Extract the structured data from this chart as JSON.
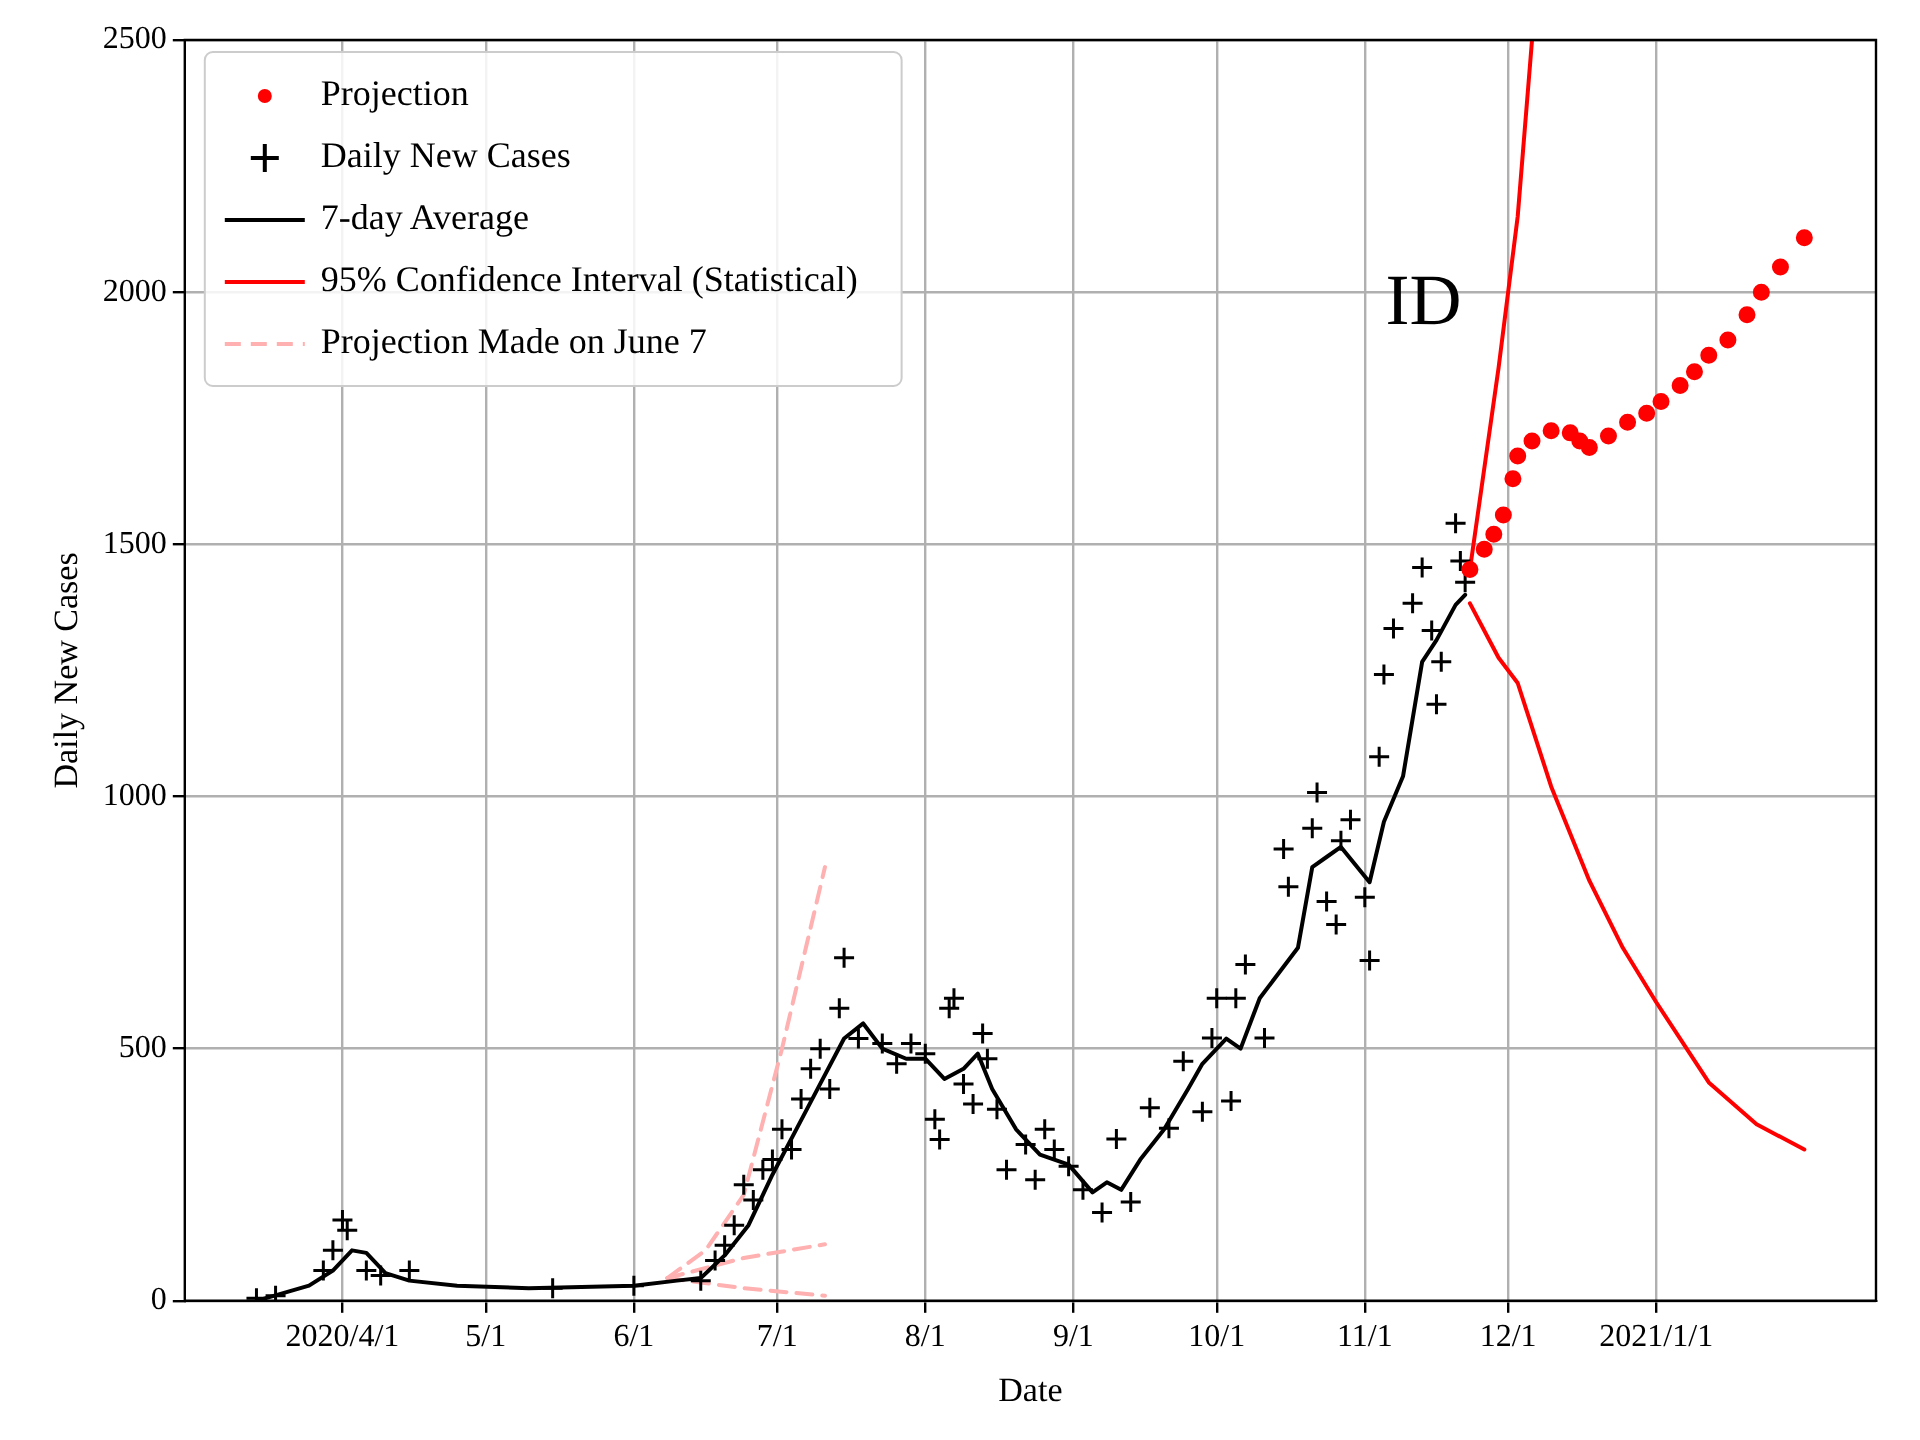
{
  "chart_data": {
    "type": "scatter",
    "xlabel": "Date",
    "ylabel": "Daily New Cases",
    "xlim": [
      "2020-02-28",
      "2021-02-16"
    ],
    "xticks": [
      {
        "value": "2020-04-01",
        "label": "2020/4/1"
      },
      {
        "value": "2020-05-01",
        "label": "5/1"
      },
      {
        "value": "2020-06-01",
        "label": "6/1"
      },
      {
        "value": "2020-07-01",
        "label": "7/1"
      },
      {
        "value": "2020-08-01",
        "label": "8/1"
      },
      {
        "value": "2020-09-01",
        "label": "9/1"
      },
      {
        "value": "2020-10-01",
        "label": "10/1"
      },
      {
        "value": "2020-11-01",
        "label": "11/1"
      },
      {
        "value": "2020-12-01",
        "label": "12/1"
      },
      {
        "value": "2021-01-01",
        "label": "2021/1/1"
      }
    ],
    "ylim": [
      0,
      2500
    ],
    "yticks": [
      0,
      500,
      1000,
      1500,
      2000,
      2500
    ],
    "grid": true,
    "legend": "top left",
    "annotations": [
      "ID"
    ],
    "series": [
      {
        "name": "Projection",
        "type": "scatter",
        "marker": "circle",
        "color": "#ff0000",
        "x": [
          "2020-11-23",
          "2020-11-26",
          "2020-11-28",
          "2020-11-30",
          "2020-12-02",
          "2020-12-03",
          "2020-12-06",
          "2020-12-10",
          "2020-12-14",
          "2020-12-16",
          "2020-12-18",
          "2020-12-22",
          "2020-12-26",
          "2020-12-30",
          "2021-01-02",
          "2021-01-06",
          "2021-01-09",
          "2021-01-12",
          "2021-01-16",
          "2021-01-20",
          "2021-01-23",
          "2021-01-27",
          "2021-02-01"
        ],
        "values": [
          1450,
          1490,
          1520,
          1558,
          1630,
          1675,
          1705,
          1725,
          1721,
          1705,
          1692,
          1715,
          1742,
          1760,
          1783,
          1815,
          1842,
          1875,
          1905,
          1955,
          2000,
          2050,
          2108
        ]
      },
      {
        "name": "Daily New Cases",
        "type": "scatter",
        "marker": "cross",
        "color": "#000000",
        "x": [
          "2020-03-14",
          "2020-03-18",
          "2020-03-28",
          "2020-03-30",
          "2020-04-01",
          "2020-04-02",
          "2020-04-06",
          "2020-04-09",
          "2020-04-15",
          "2020-05-15",
          "2020-06-01",
          "2020-06-15",
          "2020-06-18",
          "2020-06-20",
          "2020-06-22",
          "2020-06-24",
          "2020-06-26",
          "2020-06-28",
          "2020-06-30",
          "2020-07-02",
          "2020-07-04",
          "2020-07-06",
          "2020-07-08",
          "2020-07-10",
          "2020-07-12",
          "2020-07-14",
          "2020-07-15",
          "2020-07-18",
          "2020-07-23",
          "2020-07-26",
          "2020-07-29",
          "2020-08-01",
          "2020-08-03",
          "2020-08-04",
          "2020-08-06",
          "2020-08-07",
          "2020-08-09",
          "2020-08-11",
          "2020-08-13",
          "2020-08-14",
          "2020-08-16",
          "2020-08-18",
          "2020-08-22",
          "2020-08-24",
          "2020-08-26",
          "2020-08-28",
          "2020-08-31",
          "2020-09-03",
          "2020-09-07",
          "2020-09-10",
          "2020-09-13",
          "2020-09-17",
          "2020-09-21",
          "2020-09-24",
          "2020-09-28",
          "2020-09-30",
          "2020-10-01",
          "2020-10-04",
          "2020-10-05",
          "2020-10-07",
          "2020-10-11",
          "2020-10-15",
          "2020-10-16",
          "2020-10-21",
          "2020-10-22",
          "2020-10-24",
          "2020-10-26",
          "2020-10-27",
          "2020-10-29",
          "2020-11-01",
          "2020-11-02",
          "2020-11-04",
          "2020-11-05",
          "2020-11-07",
          "2020-11-11",
          "2020-11-13",
          "2020-11-15",
          "2020-11-16",
          "2020-11-17",
          "2020-11-20",
          "2020-11-21",
          "2020-11-22"
        ],
        "values": [
          5,
          10,
          60,
          100,
          160,
          140,
          60,
          50,
          60,
          25,
          30,
          40,
          80,
          110,
          150,
          230,
          200,
          260,
          280,
          340,
          300,
          400,
          460,
          500,
          420,
          580,
          680,
          520,
          510,
          470,
          510,
          490,
          360,
          320,
          580,
          600,
          430,
          390,
          530,
          480,
          380,
          260,
          310,
          240,
          340,
          300,
          267,
          220,
          175,
          321,
          196,
          383,
          342,
          475,
          375,
          521,
          600,
          396,
          600,
          667,
          521,
          896,
          821,
          937,
          1008,
          792,
          746,
          912,
          954,
          800,
          675,
          1079,
          1242,
          1333,
          1383,
          1454,
          1329,
          1183,
          1267,
          1542,
          1467,
          1425
        ]
      },
      {
        "name": "7-day Average",
        "type": "line",
        "marker": "none",
        "line_style": "solid",
        "color": "#000000",
        "x": [
          "2020-03-14",
          "2020-03-25",
          "2020-03-30",
          "2020-04-03",
          "2020-04-06",
          "2020-04-10",
          "2020-04-15",
          "2020-04-25",
          "2020-05-10",
          "2020-06-01",
          "2020-06-10",
          "2020-06-15",
          "2020-06-20",
          "2020-06-25",
          "2020-06-30",
          "2020-07-05",
          "2020-07-10",
          "2020-07-15",
          "2020-07-19",
          "2020-07-23",
          "2020-07-28",
          "2020-08-01",
          "2020-08-05",
          "2020-08-09",
          "2020-08-12",
          "2020-08-15",
          "2020-08-20",
          "2020-08-25",
          "2020-08-31",
          "2020-09-05",
          "2020-09-08",
          "2020-09-11",
          "2020-09-15",
          "2020-09-20",
          "2020-09-25",
          "2020-09-28",
          "2020-10-03",
          "2020-10-06",
          "2020-10-10",
          "2020-10-14",
          "2020-10-18",
          "2020-10-21",
          "2020-10-24",
          "2020-10-27",
          "2020-11-02",
          "2020-11-05",
          "2020-11-09",
          "2020-11-13",
          "2020-11-16",
          "2020-11-20",
          "2020-11-22"
        ],
        "values": [
          0,
          30,
          60,
          100,
          95,
          55,
          40,
          30,
          25,
          30,
          40,
          45,
          90,
          150,
          250,
          340,
          430,
          520,
          550,
          500,
          480,
          480,
          440,
          460,
          490,
          420,
          340,
          290,
          270,
          215,
          235,
          220,
          280,
          340,
          420,
          470,
          520,
          500,
          600,
          650,
          700,
          860,
          880,
          900,
          830,
          950,
          1040,
          1267,
          1310,
          1380,
          1400
        ]
      },
      {
        "name": "95% Confidence Interval (Statistical)",
        "type": "line",
        "marker": "none",
        "line_style": "solid",
        "color": "#ff0000",
        "x": [
          "2020-11-23",
          "2020-11-29",
          "2020-12-03",
          "2020-12-06"
        ],
        "values": [
          1450,
          1850,
          2150,
          2500
        ]
      },
      {
        "type": "line",
        "marker": "none",
        "line_style": "solid",
        "color": "#ff0000",
        "x": [
          "2020-11-23",
          "2020-11-29",
          "2020-12-03",
          "2020-12-10",
          "2020-12-18",
          "2020-12-25",
          "2021-01-01",
          "2021-01-12",
          "2021-01-22",
          "2021-02-01"
        ],
        "values": [
          1383,
          1275,
          1225,
          1020,
          833,
          700,
          592,
          433,
          350,
          300
        ]
      },
      {
        "name": "Projection Made on June 7",
        "type": "line",
        "marker": "none",
        "line_style": "dashed",
        "color": "#ffb0b0",
        "x": [
          "2020-06-08",
          "2020-06-16",
          "2020-06-24",
          "2020-07-02",
          "2020-07-11"
        ],
        "values": [
          45,
          100,
          210,
          500,
          860
        ]
      },
      {
        "type": "line",
        "marker": "none",
        "line_style": "dashed",
        "color": "#ffb0b0",
        "x": [
          "2020-06-08",
          "2020-06-24",
          "2020-07-11"
        ],
        "values": [
          45,
          85,
          112
        ]
      },
      {
        "type": "line",
        "marker": "none",
        "line_style": "dashed",
        "color": "#ffb0b0",
        "x": [
          "2020-06-08",
          "2020-06-24",
          "2020-07-11"
        ],
        "values": [
          45,
          25,
          10
        ]
      }
    ]
  }
}
